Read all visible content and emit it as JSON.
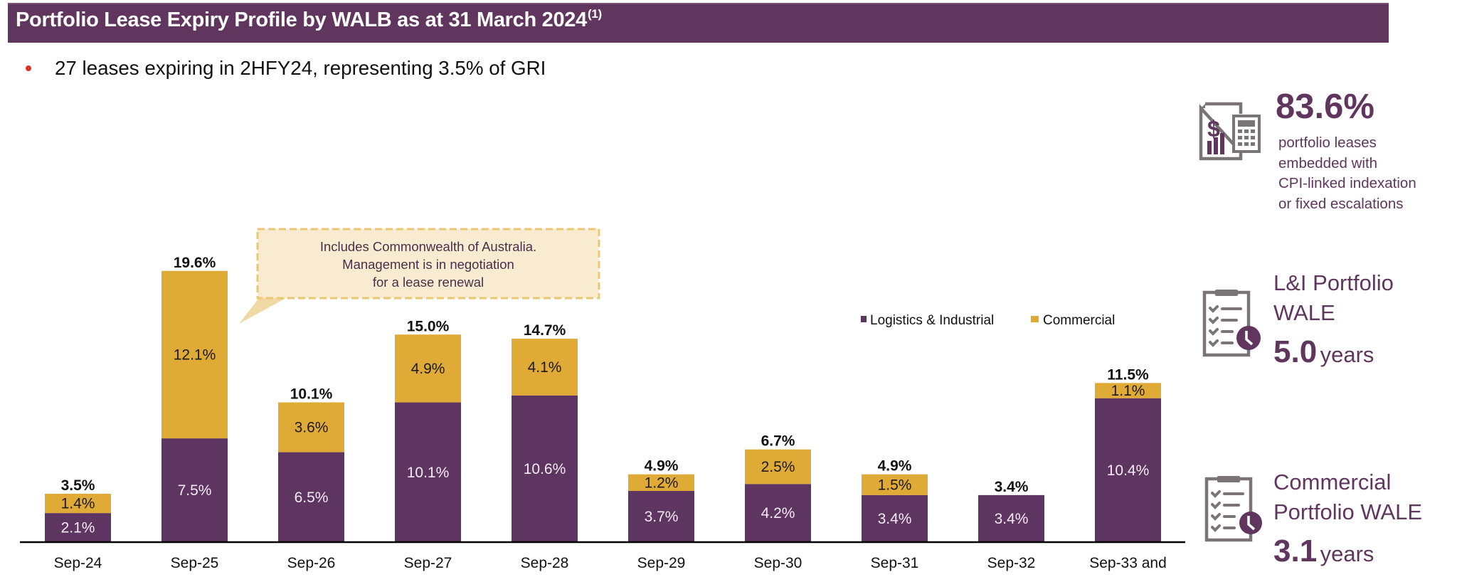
{
  "header": {
    "title": "Portfolio Lease Expiry Profile by WALB as at 31 March 2024",
    "title_footnote": "(1)"
  },
  "bullet": {
    "text": "27 leases expiring in 2HFY24, representing 3.5% of GRI"
  },
  "callout": {
    "lines": [
      "Includes Commonwealth of Australia.",
      "Management is in negotiation",
      "for a lease renewal"
    ]
  },
  "kpis": [
    {
      "icon": "document-calculator-icon",
      "value": "83.6%",
      "description_lines": [
        "portfolio leases",
        "embedded with",
        "CPI-linked indexation",
        "or fixed escalations"
      ]
    },
    {
      "icon": "clipboard-clock-icon",
      "label_lines": [
        "L&I Portfolio",
        "WALE"
      ],
      "value": "5.0",
      "unit": "years"
    },
    {
      "icon": "clipboard-clock-icon",
      "label_lines": [
        "Commercial",
        "Portfolio WALE"
      ],
      "value": "3.1",
      "unit": "years"
    }
  ],
  "colors": {
    "brand_purple": "#60355E",
    "logistics": "#5E3460",
    "commercial": "#E0AA36",
    "callout_fill": "#F8EBCF",
    "callout_border": "#EBC873",
    "bullet": "#D9342B",
    "icon_gray": "#7B7476"
  },
  "chart_data": {
    "type": "bar",
    "stacked": true,
    "title": "Portfolio Lease Expiry Profile by WALB as at 31 March 2024",
    "xlabel": "",
    "ylabel": "",
    "ylim": [
      0,
      20
    ],
    "grid": false,
    "legend_position": "top-right",
    "categories": [
      "Sep-24",
      "Sep-25",
      "Sep-26",
      "Sep-27",
      "Sep-28",
      "Sep-29",
      "Sep-30",
      "Sep-31",
      "Sep-32",
      "Sep-33 and"
    ],
    "series": [
      {
        "name": "Logistics & Industrial",
        "values": [
          2.1,
          7.5,
          6.5,
          10.1,
          10.6,
          3.7,
          4.2,
          3.4,
          3.4,
          10.4
        ],
        "labels": [
          "2.1%",
          "7.5%",
          "6.5%",
          "10.1%",
          "10.6%",
          "3.7%",
          "4.2%",
          "3.4%",
          "3.4%",
          "10.4%"
        ]
      },
      {
        "name": "Commercial",
        "values": [
          1.4,
          12.1,
          3.6,
          4.9,
          4.1,
          1.2,
          2.5,
          1.5,
          0,
          1.1
        ],
        "labels": [
          "1.4%",
          "12.1%",
          "3.6%",
          "4.9%",
          "4.1%",
          "1.2%",
          "2.5%",
          "1.5%",
          "",
          "1.1%"
        ]
      }
    ],
    "totals": [
      3.5,
      19.6,
      10.1,
      15.0,
      14.7,
      4.9,
      6.7,
      4.9,
      3.4,
      11.5
    ],
    "total_labels": [
      "3.5%",
      "19.6%",
      "10.1%",
      "15.0%",
      "14.7%",
      "4.9%",
      "6.7%",
      "4.9%",
      "3.4%",
      "11.5%"
    ],
    "annotation": "Includes Commonwealth of Australia. Management is in negotiation for a lease renewal"
  }
}
